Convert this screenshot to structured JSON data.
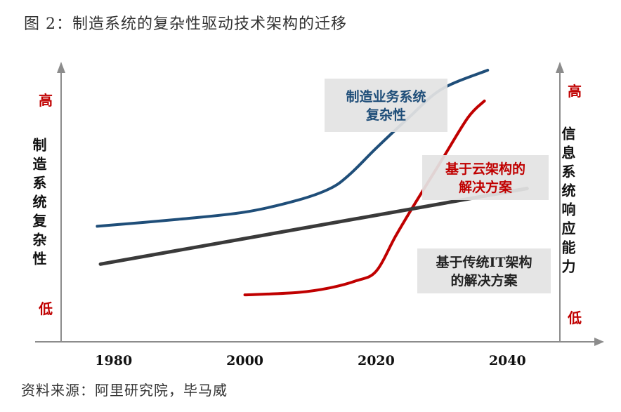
{
  "figure": {
    "title": "图 2：制造系统的复杂性驱动技术架构的迁移",
    "source": "资料来源：阿里研究院，毕马威"
  },
  "chart_data": {
    "type": "line",
    "x_ticks": [
      1980,
      2000,
      2020,
      2040
    ],
    "xlim": [
      1972,
      2048
    ],
    "left_axis": {
      "label": "制造系统复杂性",
      "high": "高",
      "low": "低"
    },
    "right_axis": {
      "label": "信息系统响应能力",
      "high": "高",
      "low": "低"
    },
    "ylim": [
      0,
      100
    ],
    "series": [
      {
        "name": "制造业务系统复杂性",
        "color": "#1f4e79",
        "points": [
          [
            1977.5,
            34
          ],
          [
            1990,
            37
          ],
          [
            2000,
            40
          ],
          [
            2008,
            45
          ],
          [
            2013,
            50
          ],
          [
            2016,
            56
          ],
          [
            2020,
            67
          ],
          [
            2025,
            80
          ],
          [
            2030,
            92
          ],
          [
            2037,
            100
          ]
        ]
      },
      {
        "name": "基于云架构的解决方案",
        "color": "#c00000",
        "points": [
          [
            2000,
            5
          ],
          [
            2008,
            6
          ],
          [
            2013,
            8
          ],
          [
            2017,
            11
          ],
          [
            2020,
            15
          ],
          [
            2023,
            30
          ],
          [
            2026,
            44
          ],
          [
            2030,
            62
          ],
          [
            2034,
            80
          ],
          [
            2036.5,
            87
          ]
        ]
      },
      {
        "name": "基于传统IT架构的解决方案",
        "color": "#3a3a3a",
        "points": [
          [
            1978,
            18
          ],
          [
            2043,
            50
          ]
        ]
      }
    ],
    "annotations": [
      {
        "lines": [
          "制造业务系统",
          "复杂性"
        ],
        "color": "#1f4e79",
        "series": 0
      },
      {
        "lines": [
          "基于云架构的",
          "解决方案"
        ],
        "color": "#c00000",
        "series": 1
      },
      {
        "lines": [
          "基于传统IT架构",
          "的解决方案"
        ],
        "color": "#222222",
        "series": 2
      }
    ],
    "accent_color": "#c00000",
    "grid": false
  }
}
